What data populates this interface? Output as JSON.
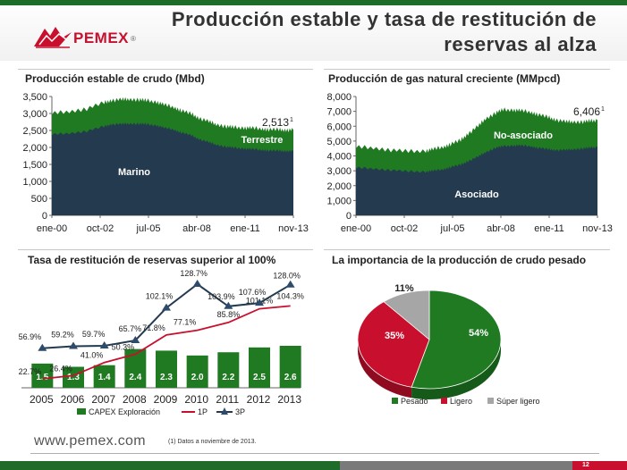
{
  "header": {
    "brand": "PEMEX",
    "registered": "®",
    "title_line1": "Producción estable y tasa de restitución de",
    "title_line2": "reservas al alza"
  },
  "footer": {
    "url": "www.pemex.com",
    "footnote": "(1)   Datos a noviembre de 2013.",
    "page_number": "12"
  },
  "colors": {
    "dark_navy": "#243a4f",
    "green": "#1f7a22",
    "red": "#c8102e",
    "grey": "#a6a6a6",
    "pemex_red": "#c8102e",
    "header_green": "#1e6b2a"
  },
  "chart_data": [
    {
      "type": "area",
      "title": "Producción estable de crudo (Mbd)",
      "x_ticks": [
        "ene-00",
        "oct-02",
        "jul-05",
        "abr-08",
        "ene-11",
        "nov-13"
      ],
      "ylim": [
        0,
        3500
      ],
      "y_ticks": [
        0,
        500,
        1000,
        1500,
        2000,
        2500,
        3000,
        3500
      ],
      "y_tick_labels": [
        "0",
        "500",
        "1,000",
        "1,500",
        "2,000",
        "2,500",
        "3,000",
        "3,500"
      ],
      "x": [
        "2000-01",
        "2001-01",
        "2002-01",
        "2003-01",
        "2003-06",
        "2004-01",
        "2004-06",
        "2005-01",
        "2005-06",
        "2006-01",
        "2006-06",
        "2007-01",
        "2007-06",
        "2008-01",
        "2008-06",
        "2009-01",
        "2009-06",
        "2010-01",
        "2010-06",
        "2011-01",
        "2011-06",
        "2012-01",
        "2012-06",
        "2013-01",
        "2013-06",
        "2013-11"
      ],
      "series": [
        {
          "name": "Marino",
          "values": [
            2380,
            2420,
            2480,
            2620,
            2680,
            2690,
            2700,
            2700,
            2680,
            2650,
            2580,
            2520,
            2440,
            2350,
            2250,
            2150,
            2080,
            2020,
            1990,
            1970,
            1950,
            1930,
            1910,
            1900,
            1895,
            1890
          ]
        },
        {
          "name": "Terrestre",
          "values": [
            620,
            640,
            660,
            700,
            710,
            720,
            720,
            710,
            700,
            690,
            680,
            660,
            650,
            630,
            620,
            610,
            600,
            600,
            600,
            610,
            620,
            620,
            620,
            620,
            620,
            623
          ]
        }
      ],
      "total_label": "2,513",
      "total_label_note": "1"
    },
    {
      "type": "area",
      "title": "Producción de gas natural creciente (MMpcd)",
      "x_ticks": [
        "ene-00",
        "oct-02",
        "jul-05",
        "abr-08",
        "ene-11",
        "nov-13"
      ],
      "ylim": [
        0,
        8000
      ],
      "y_ticks": [
        0,
        1000,
        2000,
        3000,
        4000,
        5000,
        6000,
        7000,
        8000
      ],
      "y_tick_labels": [
        "0",
        "1,000",
        "2,000",
        "3,000",
        "4,000",
        "5,000",
        "6,000",
        "7,000",
        "8,000"
      ],
      "x": [
        "2000-01",
        "2001-01",
        "2002-01",
        "2003-01",
        "2004-01",
        "2004-06",
        "2005-01",
        "2005-06",
        "2006-01",
        "2006-06",
        "2007-01",
        "2007-06",
        "2008-01",
        "2008-06",
        "2009-01",
        "2009-06",
        "2010-01",
        "2010-06",
        "2011-01",
        "2011-06",
        "2012-01",
        "2012-06",
        "2013-01",
        "2013-06",
        "2013-11"
      ],
      "series": [
        {
          "name": "Asociado",
          "values": [
            3200,
            3150,
            3050,
            2950,
            2950,
            3000,
            3100,
            3250,
            3400,
            3650,
            3950,
            4250,
            4550,
            4650,
            4700,
            4700,
            4650,
            4550,
            4450,
            4400,
            4400,
            4450,
            4500,
            4550,
            4600
          ]
        },
        {
          "name": "No-asociado",
          "values": [
            1400,
            1400,
            1350,
            1350,
            1400,
            1450,
            1500,
            1550,
            1650,
            1850,
            2050,
            2250,
            2350,
            2450,
            2400,
            2350,
            2300,
            2250,
            2150,
            2050,
            1900,
            1850,
            1800,
            1800,
            1806
          ]
        }
      ],
      "total_label": "6,406",
      "total_label_note": "1"
    },
    {
      "type": "bar",
      "title": "Tasa de restitución de reservas superior al 100%",
      "categories": [
        "2005",
        "2006",
        "2007",
        "2008",
        "2009",
        "2010",
        "2011",
        "2012",
        "2013"
      ],
      "series": [
        {
          "name": "CAPEX Exploración",
          "values": [
            1.5,
            1.3,
            1.4,
            2.4,
            2.3,
            2.0,
            2.2,
            2.5,
            2.6
          ],
          "labels": [
            "1.5",
            "1.3",
            "1.4",
            "2.4",
            "2.3",
            "2.0",
            "2.2",
            "2.5",
            "2.6"
          ]
        },
        {
          "name": "1P",
          "values": [
            22.7,
            26.4,
            41.0,
            50.3,
            71.8,
            77.1,
            85.8,
            101.1,
            104.3
          ],
          "labels": [
            "22.7%",
            "26.4%",
            "41.0%",
            "50.3%",
            "71.8%",
            "77.1%",
            "85.8%",
            "101.1%",
            "104.3%"
          ]
        },
        {
          "name": "3P",
          "values": [
            56.9,
            59.2,
            59.7,
            65.7,
            102.1,
            128.7,
            103.9,
            107.6,
            128.0
          ],
          "labels": [
            "56.9%",
            "59.2%",
            "59.7%",
            "65.7%",
            "102.1%",
            "128.7%",
            "103.9%",
            "107.6%",
            "128.0%"
          ]
        }
      ]
    },
    {
      "type": "pie",
      "title": "La importancia de la producción de crudo pesado",
      "slices": [
        {
          "name": "Pesado",
          "value": 54,
          "label": "54%"
        },
        {
          "name": "Ligero",
          "value": 35,
          "label": "35%"
        },
        {
          "name": "Súper ligero",
          "value": 11,
          "label": "11%"
        }
      ]
    }
  ]
}
